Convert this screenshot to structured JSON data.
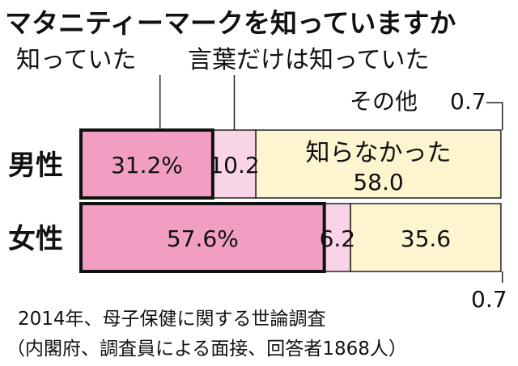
{
  "chart_data": {
    "type": "bar",
    "orientation": "horizontal",
    "stacked": true,
    "title": "マタニティーマークを知っていますか",
    "categories": [
      "男性",
      "女性"
    ],
    "series": [
      {
        "name": "知っていた",
        "values": [
          31.2,
          57.6
        ],
        "value_labels": [
          "31.2%",
          "57.6%"
        ],
        "color": "#f19ec2"
      },
      {
        "name": "言葉だけは知っていた",
        "values": [
          10.2,
          6.2
        ],
        "value_labels": [
          "10.2",
          "6.2"
        ],
        "color": "#f9d3e6"
      },
      {
        "name": "知らなかった",
        "values": [
          58.0,
          35.6
        ],
        "value_labels": [
          "知らなかった\n58.0",
          "35.6"
        ],
        "color": "#fcf5d0"
      },
      {
        "name": "その他",
        "values": [
          0.7,
          0.7
        ],
        "value_labels": [
          "0.7",
          "0.7"
        ],
        "color": "#ffffff"
      }
    ],
    "callout_labels": {
      "known": "知っていた",
      "words_only": "言葉だけは知っていた",
      "other": "その他"
    },
    "notes": [
      "2014年、母子保健に関する世論調査",
      "（内閣府、調査員による面接、回答者1868人）"
    ],
    "xlim": [
      0,
      100
    ],
    "grid": false,
    "legend": "callouts"
  }
}
